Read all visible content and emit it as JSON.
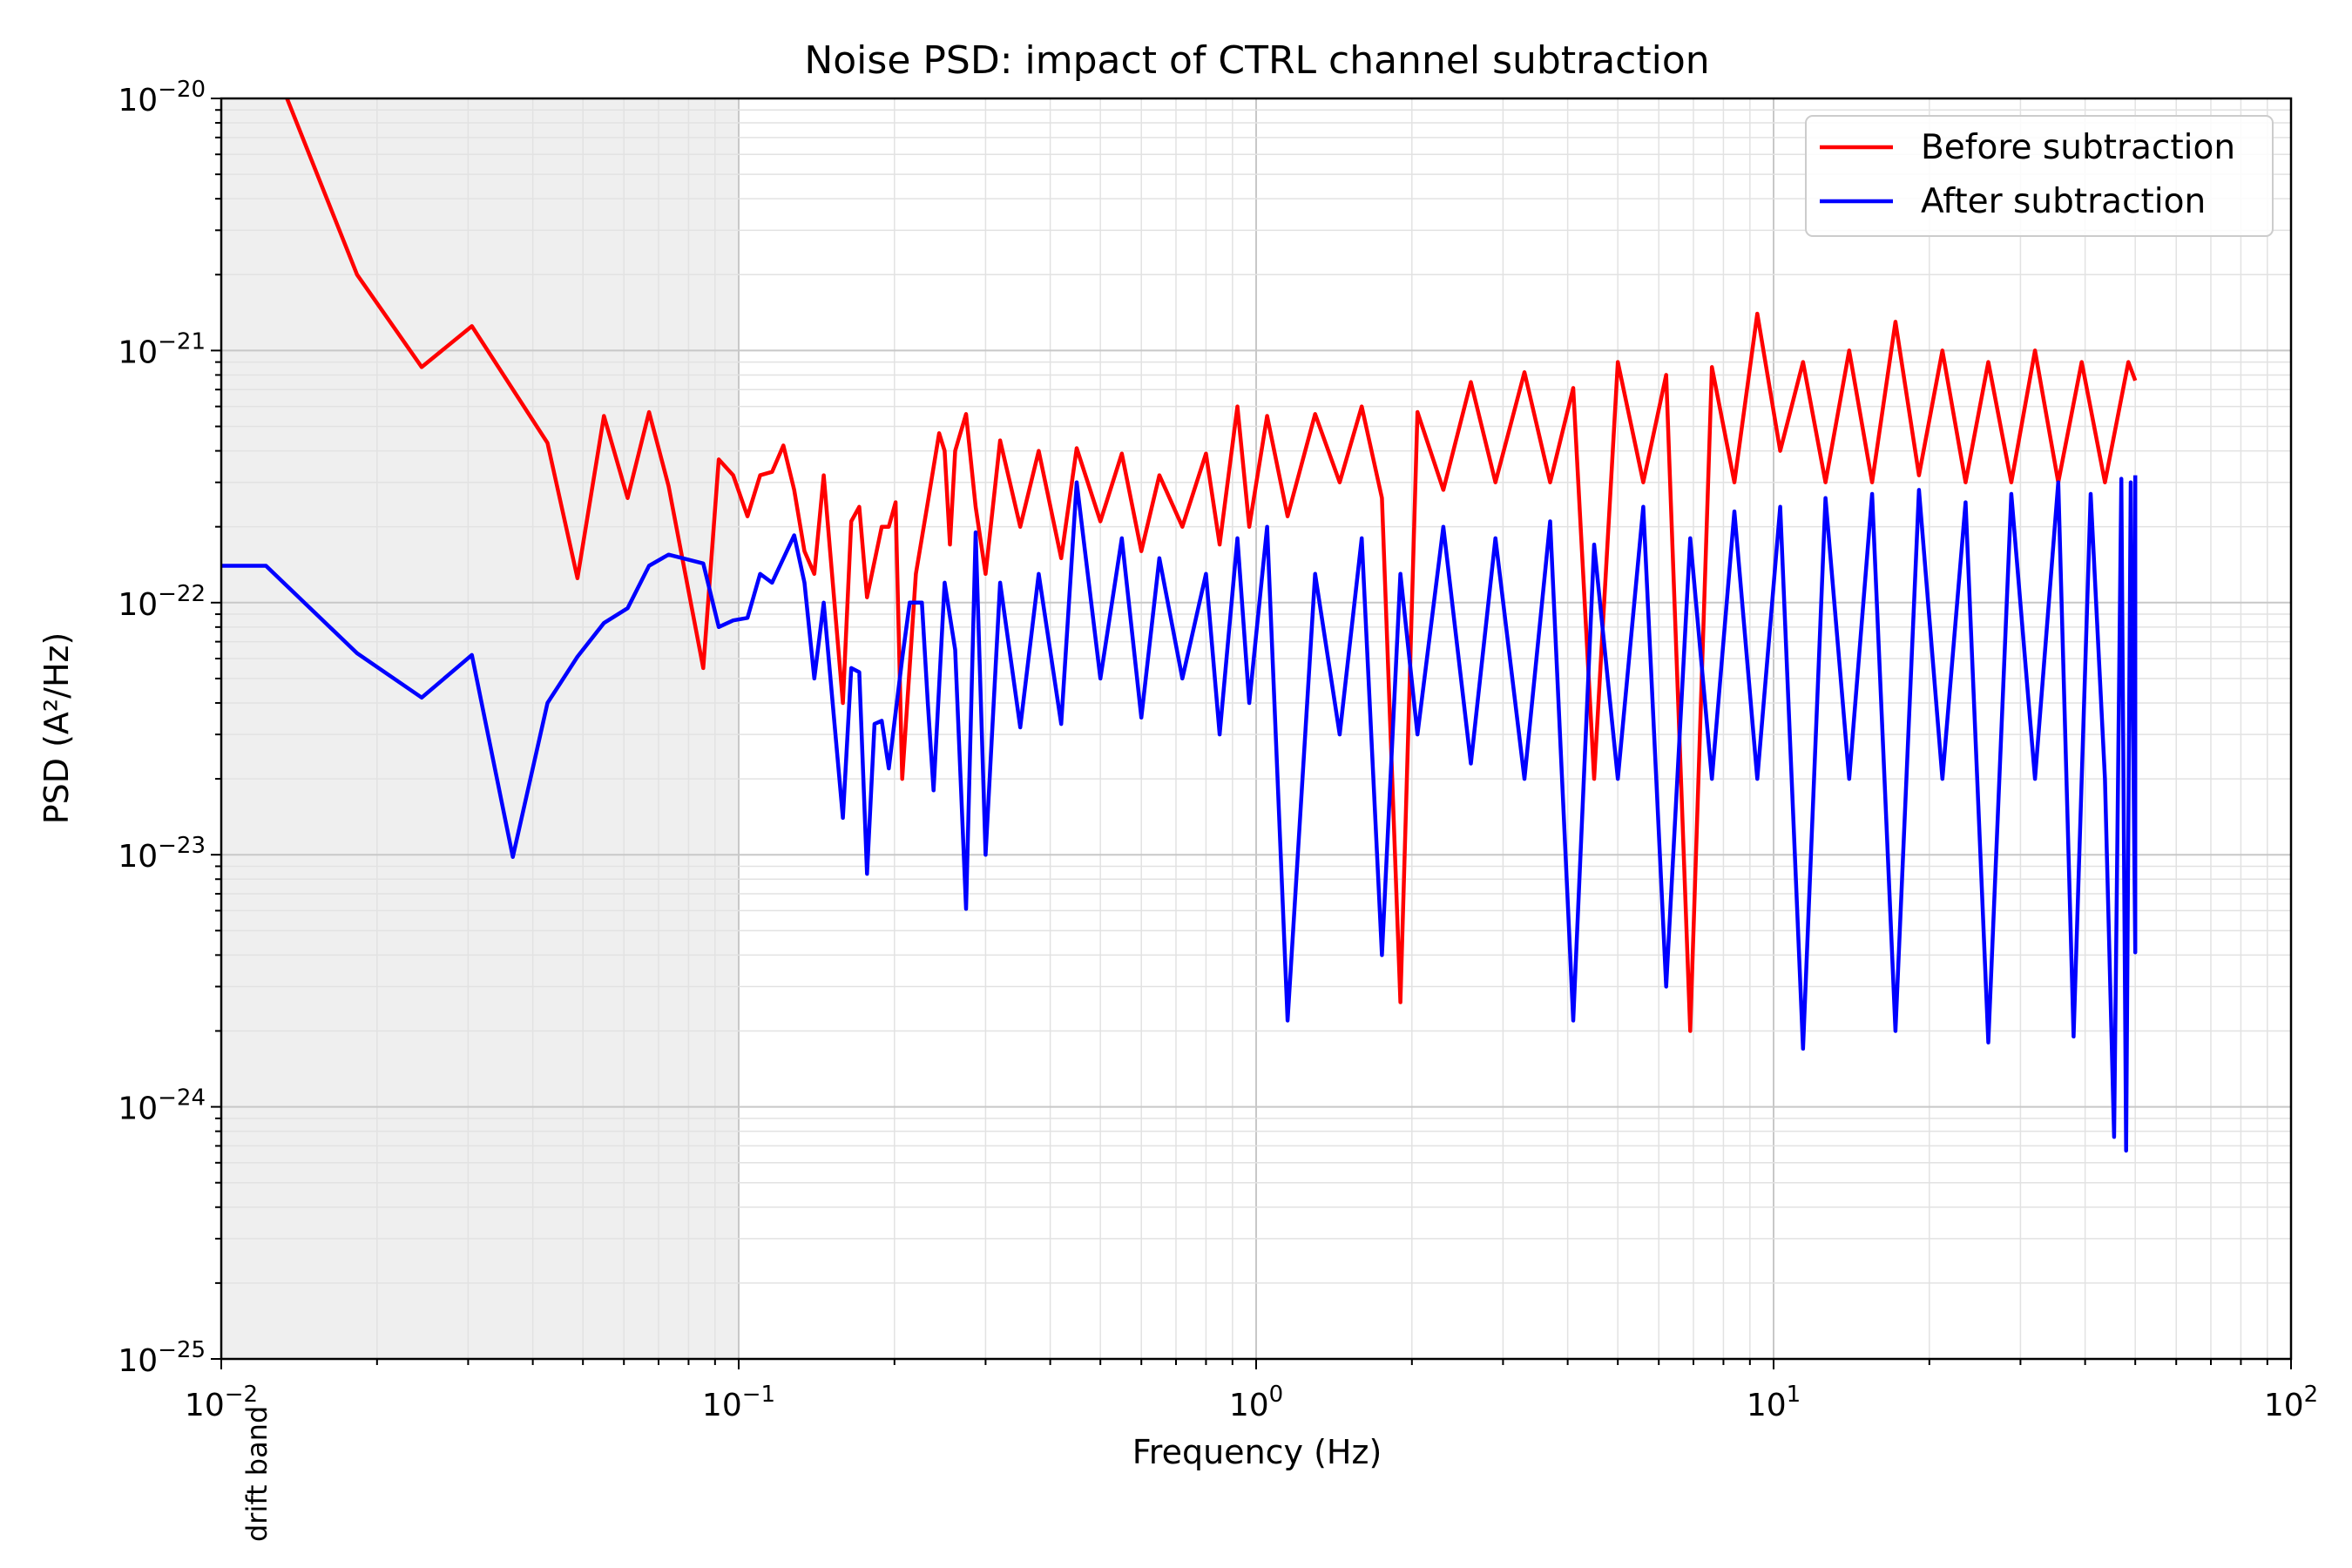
{
  "chart_data": {
    "type": "line",
    "title": "Noise PSD: impact of CTRL channel subtraction",
    "xlabel": "Frequency (Hz)",
    "ylabel": "PSD (A²/Hz)",
    "xscale": "log",
    "yscale": "log",
    "xlim": [
      0.01,
      100
    ],
    "ylim": [
      1e-25,
      1e-20
    ],
    "grid": "both major and minor",
    "legend_position": "top-right",
    "x_ticks": [
      {
        "base": "10",
        "exp": "−2"
      },
      {
        "base": "10",
        "exp": "−1"
      },
      {
        "base": "10",
        "exp": "0"
      },
      {
        "base": "10",
        "exp": "1"
      },
      {
        "base": "10",
        "exp": "2"
      }
    ],
    "y_ticks": [
      {
        "base": "10",
        "exp": "−25"
      },
      {
        "base": "10",
        "exp": "−24"
      },
      {
        "base": "10",
        "exp": "−23"
      },
      {
        "base": "10",
        "exp": "−22"
      },
      {
        "base": "10",
        "exp": "−21"
      },
      {
        "base": "10",
        "exp": "−20"
      }
    ],
    "shaded_band": {
      "x_range": [
        0.01,
        0.1
      ],
      "label": "drift band",
      "color": "#efefef"
    },
    "series": [
      {
        "name": "Before subtraction",
        "color": "#ff0000",
        "points": [
          [
            0.0134,
            1e-20
          ],
          [
            0.0183,
            2e-21
          ],
          [
            0.0244,
            8.6e-22
          ],
          [
            0.0305,
            1.25e-21
          ],
          [
            0.0427,
            4.3e-22
          ],
          [
            0.0488,
            1.25e-22
          ],
          [
            0.0549,
            5.5e-22
          ],
          [
            0.061,
            2.6e-22
          ],
          [
            0.0671,
            5.7e-22
          ],
          [
            0.0732,
            2.9e-22
          ],
          [
            0.0854,
            5.5e-23
          ],
          [
            0.0915,
            3.7e-22
          ],
          [
            0.0976,
            3.2e-22
          ],
          [
            0.104,
            2.2e-22
          ],
          [
            0.11,
            3.2e-22
          ],
          [
            0.116,
            3.3e-22
          ],
          [
            0.122,
            4.2e-22
          ],
          [
            0.128,
            2.8e-22
          ],
          [
            0.134,
            1.6e-22
          ],
          [
            0.14,
            1.3e-22
          ],
          [
            0.146,
            3.2e-22
          ],
          [
            0.159,
            4e-23
          ],
          [
            0.165,
            2.1e-22
          ],
          [
            0.171,
            2.4e-22
          ],
          [
            0.177,
            1.05e-22
          ],
          [
            0.189,
            2e-22
          ],
          [
            0.195,
            2e-22
          ],
          [
            0.201,
            2.5e-22
          ],
          [
            0.207,
            2e-23
          ],
          [
            0.22,
            1.3e-22
          ],
          [
            0.232,
            2.5e-22
          ],
          [
            0.244,
            4.7e-22
          ],
          [
            0.25,
            4e-22
          ],
          [
            0.256,
            1.7e-22
          ],
          [
            0.262,
            4e-22
          ],
          [
            0.275,
            5.6e-22
          ],
          [
            0.287,
            2.4e-22
          ],
          [
            0.3,
            1.3e-22
          ],
          [
            0.32,
            4.4e-22
          ],
          [
            0.35,
            2e-22
          ],
          [
            0.38,
            4e-22
          ],
          [
            0.42,
            1.5e-22
          ],
          [
            0.45,
            4.1e-22
          ],
          [
            0.5,
            2.1e-22
          ],
          [
            0.55,
            3.9e-22
          ],
          [
            0.6,
            1.6e-22
          ],
          [
            0.65,
            3.2e-22
          ],
          [
            0.72,
            2e-22
          ],
          [
            0.8,
            3.9e-22
          ],
          [
            0.85,
            1.7e-22
          ],
          [
            0.92,
            6e-22
          ],
          [
            0.97,
            2e-22
          ],
          [
            1.05,
            5.5e-22
          ],
          [
            1.15,
            2.2e-22
          ],
          [
            1.3,
            5.6e-22
          ],
          [
            1.45,
            3e-22
          ],
          [
            1.6,
            6e-22
          ],
          [
            1.75,
            2.6e-22
          ],
          [
            1.9,
            2.6e-24
          ],
          [
            2.05,
            5.7e-22
          ],
          [
            2.3,
            2.8e-22
          ],
          [
            2.6,
            7.5e-22
          ],
          [
            2.9,
            3e-22
          ],
          [
            3.3,
            8.2e-22
          ],
          [
            3.7,
            3e-22
          ],
          [
            4.1,
            7.1e-22
          ],
          [
            4.5,
            2e-23
          ],
          [
            5.0,
            9e-22
          ],
          [
            5.6,
            3e-22
          ],
          [
            6.2,
            8e-22
          ],
          [
            6.9,
            2e-24
          ],
          [
            7.6,
            8.6e-22
          ],
          [
            8.4,
            3e-22
          ],
          [
            9.3,
            1.4e-21
          ],
          [
            10.3,
            4e-22
          ],
          [
            11.4,
            9e-22
          ],
          [
            12.6,
            3e-22
          ],
          [
            14.0,
            1e-21
          ],
          [
            15.5,
            3e-22
          ],
          [
            17.2,
            1.3e-21
          ],
          [
            19.1,
            3.2e-22
          ],
          [
            21.2,
            1e-21
          ],
          [
            23.5,
            3e-22
          ],
          [
            26.0,
            9e-22
          ],
          [
            28.8,
            3e-22
          ],
          [
            32.0,
            1e-21
          ],
          [
            35.5,
            3e-22
          ],
          [
            39.4,
            9e-22
          ],
          [
            43.7,
            3e-22
          ],
          [
            48.5,
            9e-22
          ],
          [
            50.0,
            7.6e-22
          ]
        ]
      },
      {
        "name": "After subtraction",
        "color": "#0000ff",
        "points": [
          [
            0.01,
            1.4e-22
          ],
          [
            0.0122,
            1.4e-22
          ],
          [
            0.0183,
            6.3e-23
          ],
          [
            0.0244,
            4.2e-23
          ],
          [
            0.0305,
            6.2e-23
          ],
          [
            0.0366,
            9.8e-24
          ],
          [
            0.0427,
            4e-23
          ],
          [
            0.0488,
            6.1e-23
          ],
          [
            0.0549,
            8.3e-23
          ],
          [
            0.061,
            9.5e-23
          ],
          [
            0.0671,
            1.4e-22
          ],
          [
            0.0732,
            1.55e-22
          ],
          [
            0.0854,
            1.43e-22
          ],
          [
            0.0915,
            8e-23
          ],
          [
            0.0976,
            8.5e-23
          ],
          [
            0.104,
            8.7e-23
          ],
          [
            0.11,
            1.3e-22
          ],
          [
            0.116,
            1.2e-22
          ],
          [
            0.128,
            1.85e-22
          ],
          [
            0.134,
            1.2e-22
          ],
          [
            0.14,
            5e-23
          ],
          [
            0.146,
            1e-22
          ],
          [
            0.159,
            1.4e-23
          ],
          [
            0.165,
            5.5e-23
          ],
          [
            0.171,
            5.3e-23
          ],
          [
            0.177,
            8.4e-24
          ],
          [
            0.183,
            3.3e-23
          ],
          [
            0.189,
            3.4e-23
          ],
          [
            0.195,
            2.2e-23
          ],
          [
            0.207,
            6e-23
          ],
          [
            0.214,
            1e-22
          ],
          [
            0.226,
            1e-22
          ],
          [
            0.232,
            4e-23
          ],
          [
            0.238,
            1.8e-23
          ],
          [
            0.25,
            1.2e-22
          ],
          [
            0.262,
            6.5e-23
          ],
          [
            0.275,
            6.1e-24
          ],
          [
            0.287,
            1.9e-22
          ],
          [
            0.3,
            1e-23
          ],
          [
            0.32,
            1.2e-22
          ],
          [
            0.35,
            3.2e-23
          ],
          [
            0.38,
            1.3e-22
          ],
          [
            0.42,
            3.3e-23
          ],
          [
            0.45,
            3e-22
          ],
          [
            0.5,
            5e-23
          ],
          [
            0.55,
            1.8e-22
          ],
          [
            0.6,
            3.5e-23
          ],
          [
            0.65,
            1.5e-22
          ],
          [
            0.72,
            5e-23
          ],
          [
            0.8,
            1.3e-22
          ],
          [
            0.85,
            3e-23
          ],
          [
            0.92,
            1.8e-22
          ],
          [
            0.97,
            4e-23
          ],
          [
            1.05,
            2e-22
          ],
          [
            1.15,
            2.2e-24
          ],
          [
            1.3,
            1.3e-22
          ],
          [
            1.45,
            3e-23
          ],
          [
            1.6,
            1.8e-22
          ],
          [
            1.75,
            4e-24
          ],
          [
            1.9,
            1.3e-22
          ],
          [
            2.05,
            3e-23
          ],
          [
            2.3,
            2e-22
          ],
          [
            2.6,
            2.3e-23
          ],
          [
            2.9,
            1.8e-22
          ],
          [
            3.3,
            2e-23
          ],
          [
            3.7,
            2.1e-22
          ],
          [
            4.1,
            2.2e-24
          ],
          [
            4.5,
            1.7e-22
          ],
          [
            5.0,
            2e-23
          ],
          [
            5.6,
            2.4e-22
          ],
          [
            6.2,
            3e-24
          ],
          [
            6.9,
            1.8e-22
          ],
          [
            7.6,
            2e-23
          ],
          [
            8.4,
            2.3e-22
          ],
          [
            9.3,
            2e-23
          ],
          [
            10.3,
            2.4e-22
          ],
          [
            11.4,
            1.7e-24
          ],
          [
            12.6,
            2.6e-22
          ],
          [
            14.0,
            2e-23
          ],
          [
            15.5,
            2.7e-22
          ],
          [
            17.2,
            2e-24
          ],
          [
            19.1,
            2.8e-22
          ],
          [
            21.2,
            2e-23
          ],
          [
            23.5,
            2.5e-22
          ],
          [
            26.0,
            1.8e-24
          ],
          [
            28.8,
            2.7e-22
          ],
          [
            32.0,
            2e-23
          ],
          [
            35.5,
            3e-22
          ],
          [
            38.0,
            1.9e-24
          ],
          [
            41.0,
            2.7e-22
          ],
          [
            43.7,
            2e-23
          ],
          [
            45.5,
            7.6e-25
          ],
          [
            47.0,
            3.1e-22
          ],
          [
            48.0,
            6.7e-25
          ],
          [
            49.0,
            3e-22
          ],
          [
            50.0,
            4.1e-24
          ],
          [
            50.0,
            3.2e-22
          ]
        ]
      }
    ]
  }
}
